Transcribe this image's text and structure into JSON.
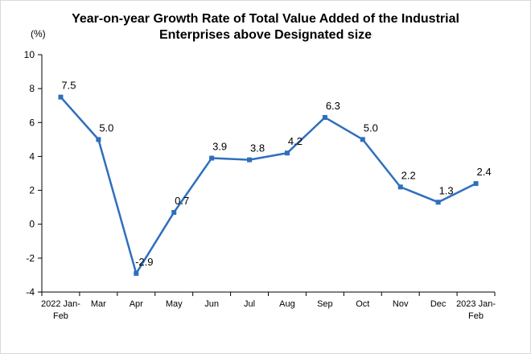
{
  "chart_data": {
    "type": "line",
    "title_lines": [
      "Year-on-year Growth Rate of Total Value Added of the Industrial",
      "Enterprises above Designated size"
    ],
    "unit_label": "(%)",
    "categories": [
      [
        "2022 Jan-",
        "Feb"
      ],
      [
        "Mar"
      ],
      [
        "Apr"
      ],
      [
        "May"
      ],
      [
        "Jun"
      ],
      [
        "Jul"
      ],
      [
        "Aug"
      ],
      [
        "Sep"
      ],
      [
        "Oct"
      ],
      [
        "Nov"
      ],
      [
        "Dec"
      ],
      [
        "2023 Jan-",
        "Feb"
      ]
    ],
    "values": [
      7.5,
      5.0,
      -2.9,
      0.7,
      3.9,
      3.8,
      4.2,
      6.3,
      5.0,
      2.2,
      1.3,
      2.4
    ],
    "data_labels": [
      "7.5",
      "5.0",
      "-2.9",
      "0.7",
      "3.9",
      "3.8",
      "4.2",
      "6.3",
      "5.0",
      "2.2",
      "1.3",
      "2.4"
    ],
    "ylim": [
      -4,
      10
    ],
    "yticks": [
      -4,
      -2,
      0,
      2,
      4,
      6,
      8,
      10
    ],
    "grid": false,
    "legend": "none",
    "line_color": "#2e6fbd",
    "marker_color": "#2e6fbd"
  }
}
